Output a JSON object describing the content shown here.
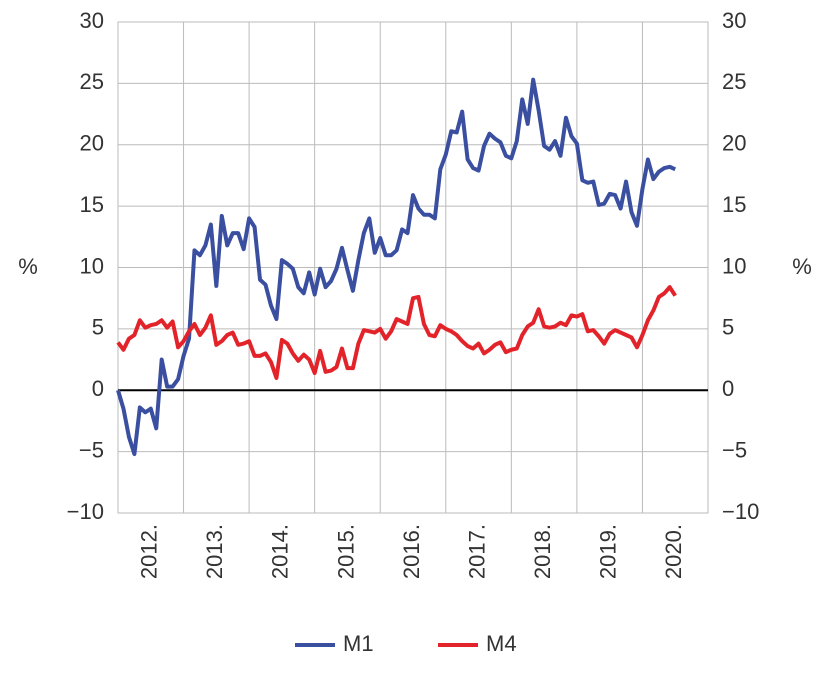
{
  "chart_data": {
    "type": "line",
    "y_label": "%",
    "y2_label": "%",
    "categories": [
      null,
      null,
      null,
      null,
      null,
      null,
      "2012.",
      null,
      null,
      null,
      null,
      null,
      null,
      null,
      null,
      null,
      null,
      null,
      "2013.",
      null,
      null,
      null,
      null,
      null,
      null,
      null,
      null,
      null,
      null,
      null,
      "2014.",
      null,
      null,
      null,
      null,
      null,
      null,
      null,
      null,
      null,
      null,
      null,
      "2015.",
      null,
      null,
      null,
      null,
      null,
      null,
      null,
      null,
      null,
      null,
      null,
      "2016.",
      null,
      null,
      null,
      null,
      null,
      null,
      null,
      null,
      null,
      null,
      null,
      "2017.",
      null,
      null,
      null,
      null,
      null,
      null,
      null,
      null,
      null,
      null,
      null,
      "2018.",
      null,
      null,
      null,
      null,
      null,
      null,
      null,
      null,
      null,
      null,
      null,
      "2019.",
      null,
      null,
      null,
      null,
      null,
      null,
      null,
      null,
      null,
      null,
      null,
      "2020.",
      null,
      null,
      null,
      null,
      null
    ],
    "series": [
      {
        "name": "M1",
        "color": "#3a4fa0",
        "values": [
          0,
          -1.5,
          -3.8,
          -5.2,
          -1.4,
          -1.8,
          -1.5,
          -3.1,
          2.5,
          0.3,
          0.3,
          0.9,
          2.8,
          4.2,
          11.4,
          11.0,
          11.8,
          13.5,
          8.5,
          14.2,
          11.8,
          12.8,
          12.8,
          11.5,
          14.0,
          13.3,
          9.0,
          8.6,
          6.9,
          5.8,
          10.6,
          10.3,
          9.9,
          8.4,
          7.9,
          9.6,
          7.8,
          9.9,
          8.4,
          8.9,
          9.9,
          11.6,
          9.8,
          8.1,
          10.6,
          12.8,
          14.0,
          11.2,
          12.4,
          11.0,
          11.0,
          11.4,
          13.1,
          12.8,
          15.9,
          14.8,
          14.3,
          14.3,
          14.0,
          18.0,
          19.2,
          21.1,
          21.0,
          22.7,
          18.8,
          18.1,
          17.9,
          19.9,
          20.9,
          20.5,
          20.2,
          19.1,
          18.9,
          20.3,
          23.7,
          21.7,
          25.3,
          22.8,
          19.9,
          19.6,
          20.3,
          19.1,
          22.2,
          20.7,
          20.1,
          17.1,
          16.9,
          17.0,
          15.1,
          15.2,
          16.0,
          15.9,
          14.8,
          17.0,
          14.5,
          13.4,
          16.4,
          18.8,
          17.2,
          17.8,
          18.1,
          18.2,
          18.0,
          null,
          null,
          null,
          null,
          null
        ]
      },
      {
        "name": "M4",
        "color": "#e3232a",
        "values": [
          3.9,
          3.3,
          4.2,
          4.5,
          5.7,
          5.1,
          5.3,
          5.4,
          5.7,
          5.1,
          5.6,
          3.5,
          4.0,
          4.8,
          5.4,
          4.5,
          5.1,
          6.1,
          3.7,
          4.0,
          4.5,
          4.7,
          3.7,
          3.8,
          4.0,
          2.8,
          2.8,
          3.0,
          2.3,
          1.0,
          4.1,
          3.8,
          3.0,
          2.4,
          2.9,
          2.5,
          1.4,
          3.2,
          1.5,
          1.6,
          1.9,
          3.4,
          1.8,
          1.8,
          3.8,
          4.9,
          4.8,
          4.7,
          5.0,
          4.2,
          4.8,
          5.8,
          5.6,
          5.4,
          7.5,
          7.6,
          5.4,
          4.5,
          4.4,
          5.3,
          5.0,
          4.8,
          4.5,
          4.0,
          3.6,
          3.4,
          3.8,
          3.0,
          3.3,
          3.7,
          3.9,
          3.1,
          3.3,
          3.4,
          4.5,
          5.2,
          5.5,
          6.6,
          5.2,
          5.1,
          5.2,
          5.5,
          5.3,
          6.1,
          6.0,
          6.2,
          4.8,
          4.9,
          4.4,
          3.8,
          4.6,
          4.9,
          4.7,
          4.5,
          4.3,
          3.5,
          4.5,
          5.7,
          6.5,
          7.6,
          7.9,
          8.4,
          7.7,
          null,
          null,
          null,
          null,
          null
        ]
      }
    ],
    "ylim": [
      -10,
      30
    ],
    "yticks": [
      {
        "value": -10,
        "label": "−10"
      },
      {
        "value": -5,
        "label": "−5"
      },
      0,
      5,
      10,
      15,
      20,
      25,
      30
    ],
    "y2lim": [
      -10,
      30
    ],
    "y2ticks": [
      {
        "value": -10,
        "label": "−10"
      },
      {
        "value": -5,
        "label": "−5"
      },
      0,
      5,
      10,
      15,
      20,
      25,
      30
    ],
    "zero_line": true,
    "year_grid": true,
    "legend": "bottom"
  }
}
